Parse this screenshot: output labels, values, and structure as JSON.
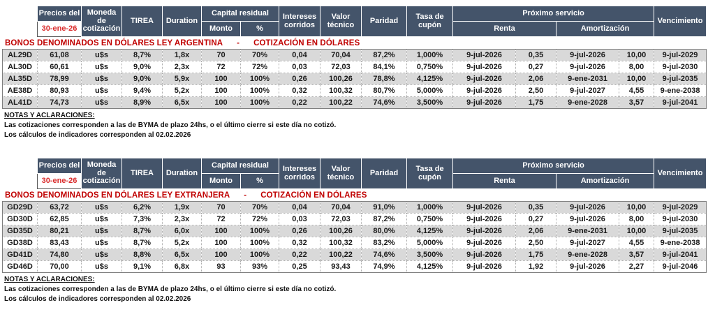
{
  "colors": {
    "header_bg": "#44546A",
    "header_text": "#FFFFFF",
    "title_red": "#C00000",
    "date_red": "#D92B2B",
    "row_alt": "#D9D9D9",
    "outer_border": "#7F7F7F"
  },
  "header": {
    "precios_del": "Precios del",
    "fecha": "30-ene-26",
    "moneda": "Moneda de cotización",
    "tirea": "TIREA",
    "duration": "Duration",
    "capital_residual": "Capital residual",
    "monto": "Monto",
    "pct": "%",
    "intereses": "Intereses corridos",
    "valor_tecnico": "Valor técnico",
    "paridad": "Paridad",
    "tasa_cupon": "Tasa de cupón",
    "proximo_servicio": "Próximo servicio",
    "renta": "Renta",
    "amortizacion": "Amortización",
    "vencimiento": "Vencimiento"
  },
  "notes": {
    "title": "NOTAS Y ACLARACIONES:",
    "line1": "Las cotizaciones corresponden a las de BYMA de plazo 24hs, o el último cierre si este día no cotizó.",
    "line2": "Los cálculos de indicadores corresponden al 02.02.2026"
  },
  "sections": [
    {
      "title_main": "BONOS DENOMINADOS EN DÓLARES LEY ARGENTINA",
      "title_dash": "-",
      "title_sub": "COTIZACIÓN EN DÓLARES",
      "rows": [
        [
          "AL29D",
          "61,08",
          "u$s",
          "8,7%",
          "1,8x",
          "70",
          "70%",
          "0,04",
          "70,04",
          "87,2%",
          "1,000%",
          "9-jul-2026",
          "0,35",
          "9-jul-2026",
          "10,00",
          "9-jul-2029"
        ],
        [
          "AL30D",
          "60,61",
          "u$s",
          "9,0%",
          "2,3x",
          "72",
          "72%",
          "0,03",
          "72,03",
          "84,1%",
          "0,750%",
          "9-jul-2026",
          "0,27",
          "9-jul-2026",
          "8,00",
          "9-jul-2030"
        ],
        [
          "AL35D",
          "78,99",
          "u$s",
          "9,0%",
          "5,9x",
          "100",
          "100%",
          "0,26",
          "100,26",
          "78,8%",
          "4,125%",
          "9-jul-2026",
          "2,06",
          "9-ene-2031",
          "10,00",
          "9-jul-2035"
        ],
        [
          "AE38D",
          "80,93",
          "u$s",
          "9,4%",
          "5,2x",
          "100",
          "100%",
          "0,32",
          "100,32",
          "80,7%",
          "5,000%",
          "9-jul-2026",
          "2,50",
          "9-jul-2027",
          "4,55",
          "9-ene-2038"
        ],
        [
          "AL41D",
          "74,73",
          "u$s",
          "8,9%",
          "6,5x",
          "100",
          "100%",
          "0,22",
          "100,22",
          "74,6%",
          "3,500%",
          "9-jul-2026",
          "1,75",
          "9-ene-2028",
          "3,57",
          "9-jul-2041"
        ]
      ]
    },
    {
      "title_main": "BONOS DENOMINADOS EN DÓLARES LEY EXTRANJERA",
      "title_dash": "-",
      "title_sub": "COTIZACIÓN EN DÓLARES",
      "rows": [
        [
          "GD29D",
          "63,72",
          "u$s",
          "6,2%",
          "1,9x",
          "70",
          "70%",
          "0,04",
          "70,04",
          "91,0%",
          "1,000%",
          "9-jul-2026",
          "0,35",
          "9-jul-2026",
          "10,00",
          "9-jul-2029"
        ],
        [
          "GD30D",
          "62,85",
          "u$s",
          "7,3%",
          "2,3x",
          "72",
          "72%",
          "0,03",
          "72,03",
          "87,2%",
          "0,750%",
          "9-jul-2026",
          "0,27",
          "9-jul-2026",
          "8,00",
          "9-jul-2030"
        ],
        [
          "GD35D",
          "80,21",
          "u$s",
          "8,7%",
          "6,0x",
          "100",
          "100%",
          "0,26",
          "100,26",
          "80,0%",
          "4,125%",
          "9-jul-2026",
          "2,06",
          "9-ene-2031",
          "10,00",
          "9-jul-2035"
        ],
        [
          "GD38D",
          "83,43",
          "u$s",
          "8,7%",
          "5,2x",
          "100",
          "100%",
          "0,32",
          "100,32",
          "83,2%",
          "5,000%",
          "9-jul-2026",
          "2,50",
          "9-jul-2027",
          "4,55",
          "9-ene-2038"
        ],
        [
          "GD41D",
          "74,80",
          "u$s",
          "8,8%",
          "6,5x",
          "100",
          "100%",
          "0,22",
          "100,22",
          "74,6%",
          "3,500%",
          "9-jul-2026",
          "1,75",
          "9-ene-2028",
          "3,57",
          "9-jul-2041"
        ],
        [
          "GD46D",
          "70,00",
          "u$s",
          "9,1%",
          "6,8x",
          "93",
          "93%",
          "0,25",
          "93,43",
          "74,9%",
          "4,125%",
          "9-jul-2026",
          "1,92",
          "9-jul-2026",
          "2,27",
          "9-jul-2046"
        ]
      ]
    }
  ]
}
